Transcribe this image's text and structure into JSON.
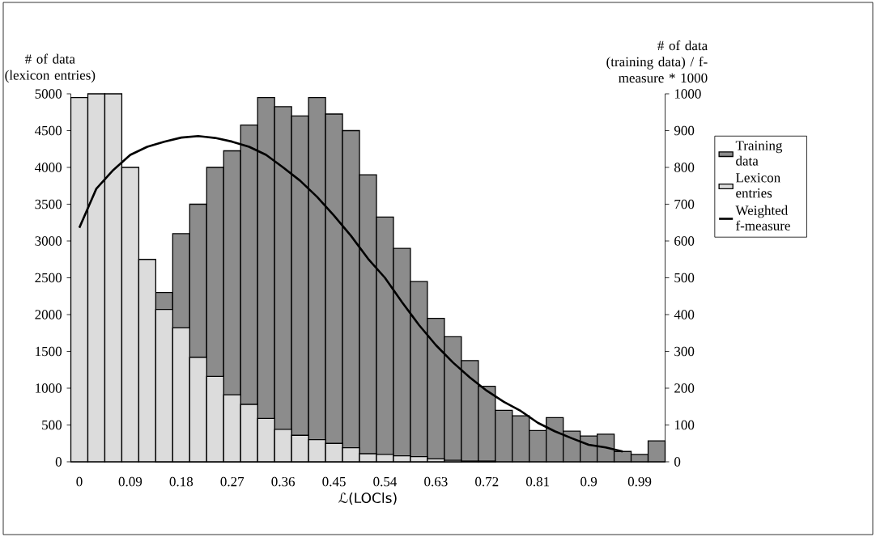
{
  "chart_data": {
    "type": "bar",
    "xlabel": "ℒ(LOCls)",
    "ylabel": "# of data (lexicon entries)",
    "y2label": "# of data (training data) / f-measure * 1000",
    "categories": [
      "0",
      null,
      null,
      "0.09",
      null,
      null,
      "0.18",
      null,
      null,
      "0.27",
      null,
      null,
      "0.36",
      null,
      null,
      "0.45",
      null,
      null,
      "0.54",
      null,
      null,
      "0.63",
      null,
      null,
      "0.72",
      null,
      null,
      "0.81",
      null,
      null,
      "0.9",
      null,
      null,
      "0.99",
      null
    ],
    "series": [
      {
        "name": "Training data",
        "type": "bar",
        "axis": "y2",
        "color": "#8c8c8c",
        "values": [
          null,
          null,
          null,
          null,
          null,
          460,
          620,
          700,
          800,
          845,
          915,
          990,
          965,
          940,
          990,
          945,
          900,
          780,
          665,
          580,
          490,
          390,
          340,
          275,
          205,
          140,
          125,
          85,
          120,
          83,
          70,
          75,
          28,
          20,
          57
        ]
      },
      {
        "name": "Lexicon entries",
        "type": "bar",
        "color": "#dcdcdc",
        "values": [
          4950,
          5000,
          5000,
          4000,
          2750,
          2070,
          1820,
          1420,
          1160,
          910,
          780,
          590,
          440,
          360,
          300,
          250,
          190,
          110,
          100,
          80,
          70,
          40,
          20,
          10,
          10,
          null,
          null,
          null,
          null,
          null,
          null,
          null,
          null,
          null,
          null
        ]
      },
      {
        "name": "Weighted f-measure",
        "type": "line",
        "axis": "y2",
        "color": "#000000",
        "values": [
          636,
          742,
          793,
          834,
          856,
          870,
          881,
          885,
          880,
          870,
          856,
          834,
          800,
          764,
          720,
          669,
          614,
          552,
          500,
          434,
          372,
          317,
          270,
          229,
          193,
          163,
          138,
          106,
          83,
          64,
          46,
          39,
          28,
          null,
          null
        ]
      }
    ],
    "ylim": [
      0,
      5000
    ],
    "yticks": [
      0,
      500,
      1000,
      1500,
      2000,
      2500,
      3000,
      3500,
      4000,
      4500,
      5000
    ],
    "y2lim": [
      0,
      1000
    ],
    "y2ticks": [
      0,
      100,
      200,
      300,
      400,
      500,
      600,
      700,
      800,
      900,
      1000
    ],
    "legend": "right"
  }
}
